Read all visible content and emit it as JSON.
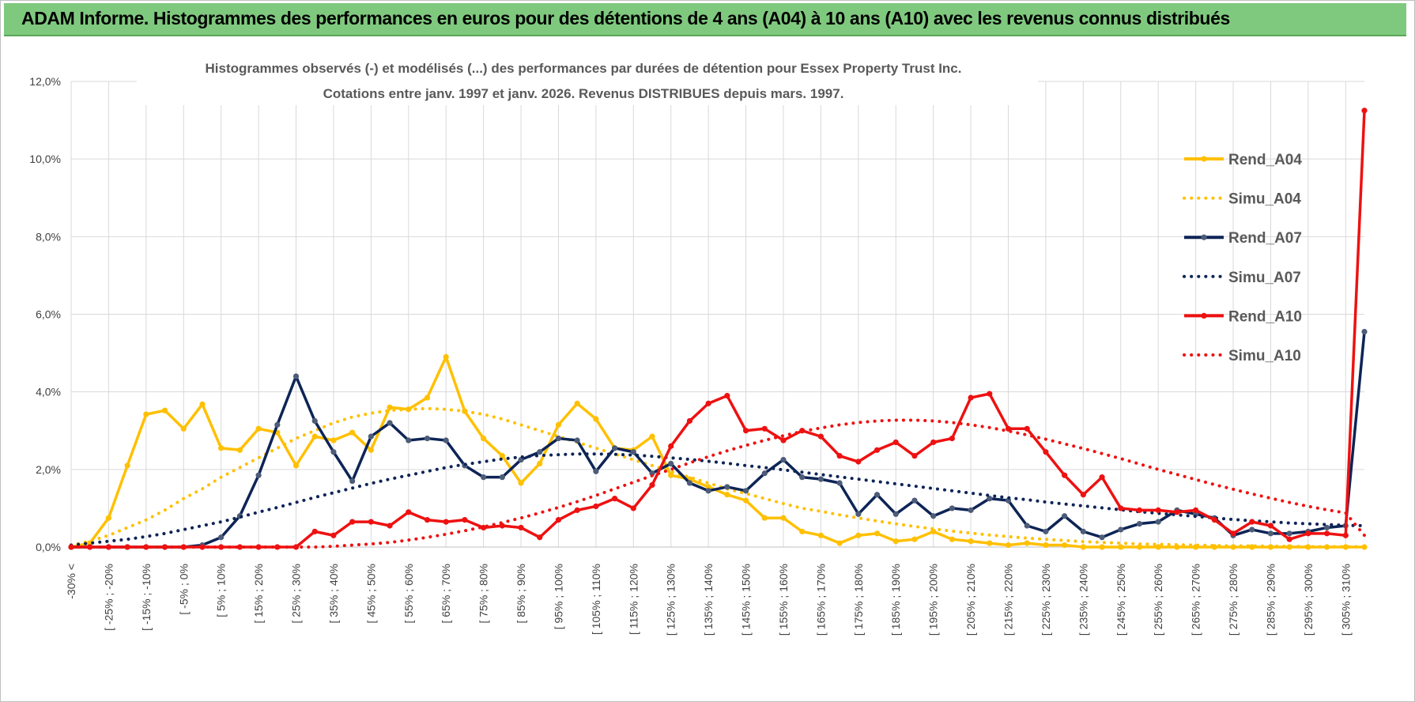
{
  "header": {
    "title": "ADAM Informe. Histogrammes des performances en euros pour des détentions de 4 ans (A04) à 10 ans (A10) avec les revenus connus distribués"
  },
  "chart_data": {
    "type": "line",
    "title": "Histogrammes observés (-) et modélisés (...) des performances par durées de détention pour Essex Property Trust Inc.",
    "subtitle": "Cotations entre janv. 1997 et janv. 2026. Revenus DISTRIBUES depuis mars. 1997.",
    "categories": [
      "-30% <",
      null,
      "[ -25% ; -20%",
      null,
      "[ -15% ; -10%",
      null,
      "[ -5% ; 0%",
      null,
      "[ 5% ; 10%",
      null,
      "[ 15% ; 20%",
      null,
      "[ 25% ; 30%",
      null,
      "[ 35% ; 40%",
      null,
      "[ 45% ; 50%",
      null,
      "[ 55% ; 60%",
      null,
      "[ 65% ; 70%",
      null,
      "[ 75% ; 80%",
      null,
      "[ 85% ; 90%",
      null,
      "[ 95% ; 100%",
      null,
      "[ 105% ; 110%",
      null,
      "[ 115% ; 120%",
      null,
      "[ 125% ; 130%",
      null,
      "[ 135% ; 140%",
      null,
      "[ 145% ; 150%",
      null,
      "[ 155% ; 160%",
      null,
      "[ 165% ; 170%",
      null,
      "[ 175% ; 180%",
      null,
      "[ 185% ; 190%",
      null,
      "[ 195% ; 200%",
      null,
      "[ 205% ; 210%",
      null,
      "[ 215% ; 220%",
      null,
      "[ 225% ; 230%",
      null,
      "[ 235% ; 240%",
      null,
      "[ 245% ; 250%",
      null,
      "[ 255% ; 260%",
      null,
      "[ 265% ; 270%",
      null,
      "[ 275% ; 280%",
      null,
      "[ 285% ; 290%",
      null,
      "[ 295% ; 300%",
      null,
      "[ 305% ; 310%",
      null
    ],
    "ylim": [
      0,
      12
    ],
    "yticks": [
      {
        "value": 0,
        "label": "0,0%"
      },
      {
        "value": 2,
        "label": "2,0%"
      },
      {
        "value": 4,
        "label": "4,0%"
      },
      {
        "value": 6,
        "label": "6,0%"
      },
      {
        "value": 8,
        "label": "8,0%"
      },
      {
        "value": 10,
        "label": "10,0%"
      },
      {
        "value": 12,
        "label": "12,0%"
      }
    ],
    "grid": true,
    "legend": "right",
    "series": [
      {
        "name": "Rend_A04",
        "color": "#ffc000",
        "line_style": "solid",
        "markers": true,
        "marker_color": "#ffc000",
        "values": [
          0,
          0.1,
          0.75,
          2.1,
          3.42,
          3.52,
          3.05,
          3.68,
          2.55,
          2.5,
          3.05,
          2.95,
          2.1,
          2.85,
          2.75,
          2.95,
          2.5,
          3.6,
          3.55,
          3.85,
          4.9,
          3.5,
          2.8,
          2.35,
          1.65,
          2.15,
          3.15,
          3.7,
          3.3,
          2.55,
          2.5,
          2.85,
          1.85,
          1.75,
          1.55,
          1.35,
          1.2,
          0.75,
          0.75,
          0.4,
          0.3,
          0.1,
          0.3,
          0.35,
          0.15,
          0.2,
          0.4,
          0.2,
          0.15,
          0.1,
          0.05,
          0.1,
          0.05,
          0.05,
          0,
          0,
          0,
          0,
          0,
          0,
          0,
          0,
          0,
          0,
          0,
          0,
          0,
          0,
          0,
          0
        ]
      },
      {
        "name": "Simu_A04",
        "color": "#ffc000",
        "line_style": "dotted",
        "markers": false,
        "values": [
          0.05,
          0.15,
          0.3,
          0.5,
          0.7,
          0.95,
          1.25,
          1.5,
          1.8,
          2.05,
          2.3,
          2.55,
          2.8,
          3.0,
          3.2,
          3.35,
          3.45,
          3.52,
          3.55,
          3.57,
          3.55,
          3.5,
          3.42,
          3.3,
          3.15,
          3.0,
          2.85,
          2.7,
          2.55,
          2.4,
          2.25,
          2.1,
          1.95,
          1.8,
          1.65,
          1.5,
          1.38,
          1.25,
          1.12,
          1.0,
          0.92,
          0.83,
          0.75,
          0.67,
          0.6,
          0.53,
          0.47,
          0.41,
          0.36,
          0.31,
          0.27,
          0.23,
          0.2,
          0.17,
          0.14,
          0.12,
          0.1,
          0.08,
          0.07,
          0.06,
          0.05,
          0.04,
          0.03,
          0.03,
          0.02,
          0.02,
          0.01,
          0.01,
          0.01,
          0.01
        ]
      },
      {
        "name": "Rend_A07",
        "color": "#0d2456",
        "line_style": "solid",
        "markers": true,
        "marker_color": "#4d5c78",
        "values": [
          0,
          0,
          0,
          0,
          0,
          0,
          0,
          0.05,
          0.25,
          0.8,
          1.85,
          3.15,
          4.4,
          3.25,
          2.45,
          1.7,
          2.85,
          3.2,
          2.75,
          2.8,
          2.75,
          2.1,
          1.8,
          1.8,
          2.25,
          2.45,
          2.8,
          2.75,
          1.95,
          2.55,
          2.45,
          1.9,
          2.15,
          1.65,
          1.45,
          1.55,
          1.45,
          1.9,
          2.25,
          1.8,
          1.75,
          1.65,
          0.85,
          1.35,
          0.85,
          1.2,
          0.8,
          1.0,
          0.95,
          1.25,
          1.2,
          0.55,
          0.4,
          0.8,
          0.4,
          0.25,
          0.45,
          0.6,
          0.65,
          0.95,
          0.85,
          0.75,
          0.3,
          0.45,
          0.35,
          0.35,
          0.4,
          0.5,
          0.55,
          5.55
        ]
      },
      {
        "name": "Simu_A07",
        "color": "#0d2456",
        "line_style": "dotted",
        "markers": false,
        "values": [
          0.05,
          0.1,
          0.15,
          0.2,
          0.27,
          0.35,
          0.45,
          0.55,
          0.65,
          0.77,
          0.9,
          1.02,
          1.15,
          1.28,
          1.4,
          1.52,
          1.64,
          1.75,
          1.85,
          1.95,
          2.05,
          2.13,
          2.2,
          2.27,
          2.32,
          2.36,
          2.38,
          2.4,
          2.4,
          2.39,
          2.37,
          2.34,
          2.3,
          2.26,
          2.21,
          2.16,
          2.1,
          2.05,
          1.99,
          1.93,
          1.87,
          1.81,
          1.75,
          1.69,
          1.63,
          1.57,
          1.51,
          1.45,
          1.39,
          1.33,
          1.27,
          1.22,
          1.16,
          1.11,
          1.06,
          1.01,
          0.96,
          0.91,
          0.87,
          0.83,
          0.79,
          0.75,
          0.71,
          0.68,
          0.65,
          0.62,
          0.6,
          0.58,
          0.56,
          0.55
        ]
      },
      {
        "name": "Rend_A10",
        "color": "#ee1111",
        "line_style": "solid",
        "markers": true,
        "marker_color": "#ee1111",
        "values": [
          0,
          0,
          0,
          0,
          0,
          0,
          0,
          0,
          0,
          0,
          0,
          0,
          0,
          0.4,
          0.3,
          0.65,
          0.65,
          0.55,
          0.9,
          0.7,
          0.65,
          0.7,
          0.5,
          0.55,
          0.5,
          0.25,
          0.7,
          0.95,
          1.05,
          1.25,
          1.0,
          1.6,
          2.6,
          3.25,
          3.7,
          3.9,
          3.0,
          3.05,
          2.75,
          3.0,
          2.85,
          2.35,
          2.2,
          2.5,
          2.7,
          2.35,
          2.7,
          2.8,
          3.85,
          3.95,
          3.05,
          3.05,
          2.45,
          1.85,
          1.35,
          1.8,
          1.0,
          0.95,
          0.95,
          0.9,
          0.95,
          0.7,
          0.35,
          0.65,
          0.55,
          0.2,
          0.35,
          0.35,
          0.3,
          11.25
        ]
      },
      {
        "name": "Simu_A10",
        "color": "#ee1111",
        "line_style": "dotted",
        "markers": false,
        "values": [
          0,
          0,
          0,
          0,
          0,
          0,
          0,
          0,
          0,
          0,
          0,
          0,
          0,
          0,
          0.02,
          0.05,
          0.08,
          0.12,
          0.18,
          0.25,
          0.33,
          0.42,
          0.52,
          0.63,
          0.75,
          0.88,
          1.02,
          1.17,
          1.33,
          1.5,
          1.67,
          1.84,
          2.0,
          2.17,
          2.33,
          2.48,
          2.62,
          2.75,
          2.87,
          2.98,
          3.07,
          3.15,
          3.21,
          3.25,
          3.27,
          3.27,
          3.25,
          3.21,
          3.15,
          3.08,
          2.99,
          2.89,
          2.78,
          2.66,
          2.54,
          2.41,
          2.28,
          2.14,
          2.0,
          1.87,
          1.74,
          1.61,
          1.49,
          1.37,
          1.26,
          1.15,
          1.05,
          0.96,
          0.88,
          0.3
        ]
      }
    ]
  }
}
